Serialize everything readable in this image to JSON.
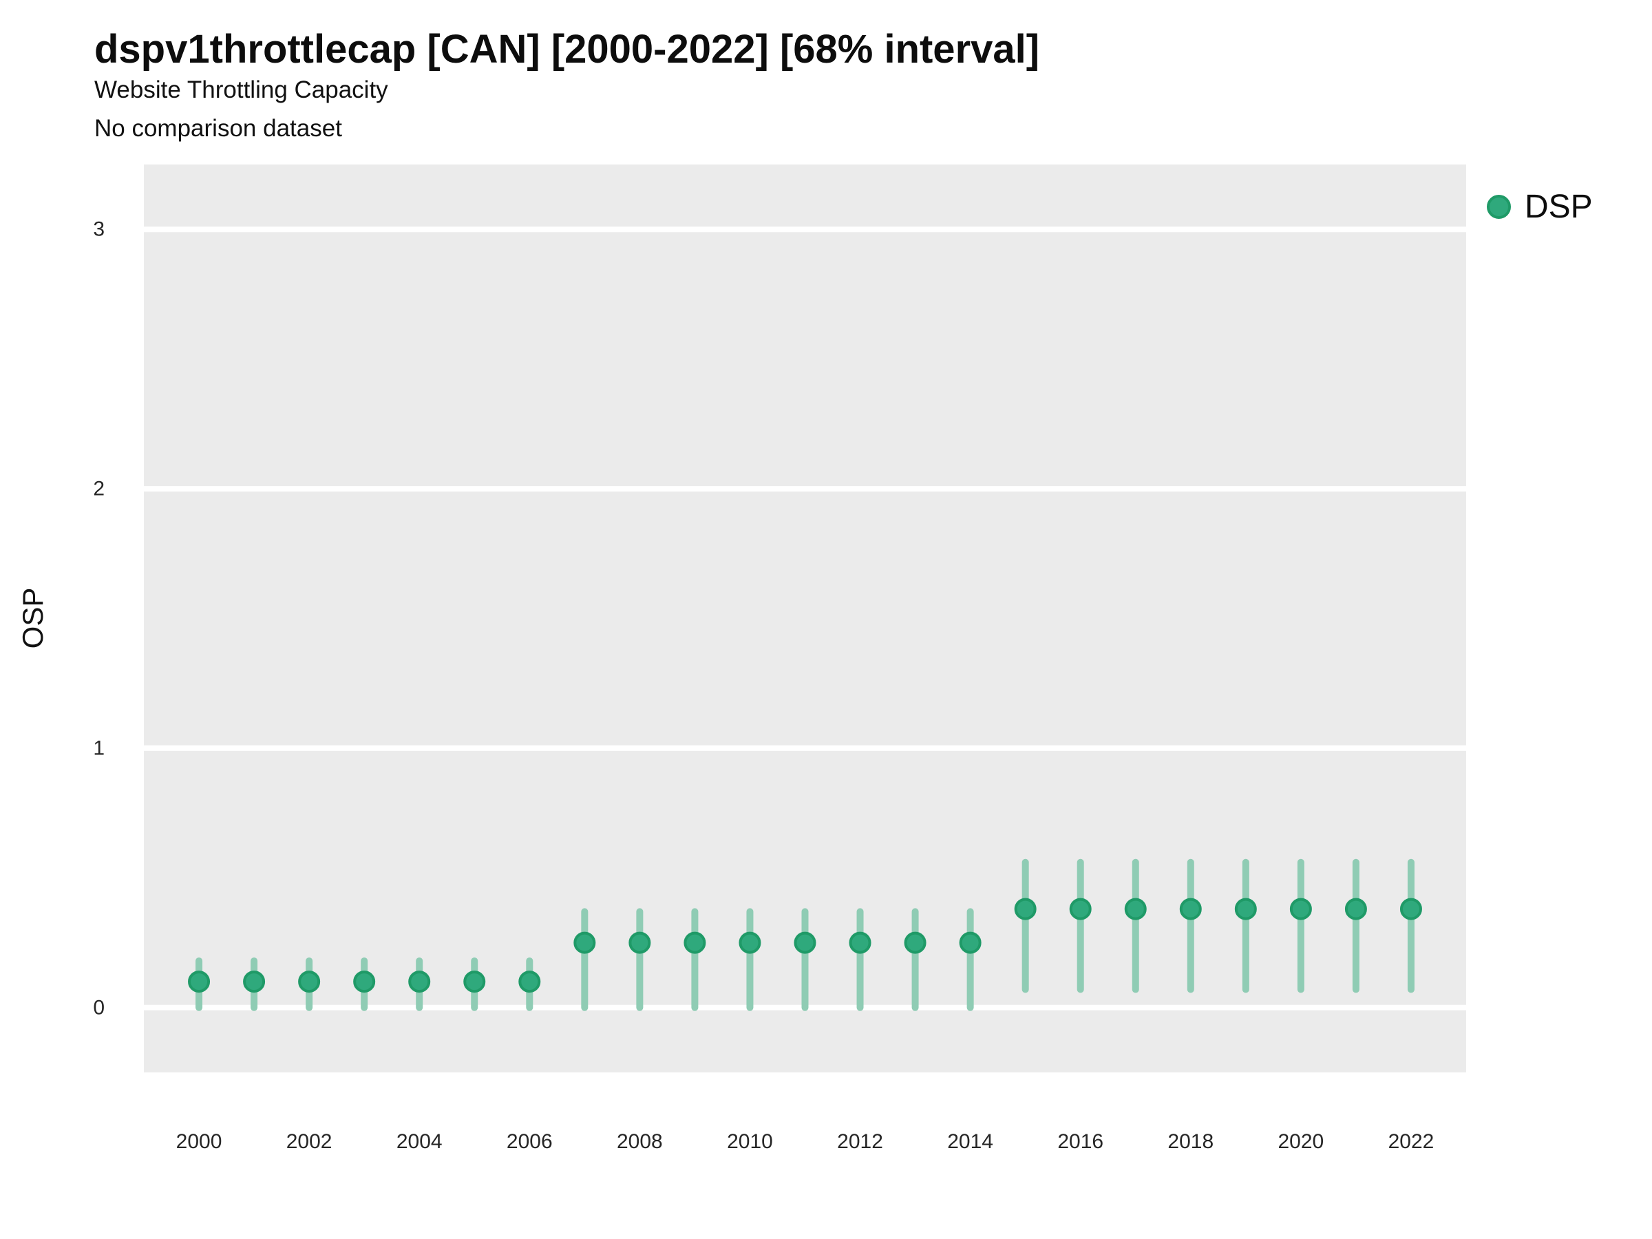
{
  "chart_data": {
    "type": "scatter",
    "variant": "pointrange",
    "title": "dspv1throttlecap [CAN] [2000-2022] [68% interval]",
    "subtitle": "Website Throttling Capacity",
    "note": "No comparison dataset",
    "xlabel": "",
    "ylabel": "OSP",
    "interval_label": "68% interval",
    "legend": {
      "label": "DSP",
      "position": "right",
      "dot_color": "#2fa97c"
    },
    "x_domain": [
      1999,
      2023
    ],
    "y_domain": [
      -0.25,
      3.25
    ],
    "x_ticks": [
      2000,
      2002,
      2004,
      2006,
      2008,
      2010,
      2012,
      2014,
      2016,
      2018,
      2020,
      2022
    ],
    "y_ticks": [
      0,
      1,
      2,
      3
    ],
    "grid": "major-white-on-gray",
    "panel_color": "#ebebeb",
    "gridline_color": "#ffffff",
    "point_color": "#2fa97c",
    "point_edge_color": "#1f9a67",
    "range_bar_color": "#8fccb4",
    "series": [
      {
        "name": "DSP",
        "points": [
          {
            "year": 2000,
            "value": 0.1,
            "lo": 0.0,
            "hi": 0.18
          },
          {
            "year": 2001,
            "value": 0.1,
            "lo": 0.0,
            "hi": 0.18
          },
          {
            "year": 2002,
            "value": 0.1,
            "lo": 0.0,
            "hi": 0.18
          },
          {
            "year": 2003,
            "value": 0.1,
            "lo": 0.0,
            "hi": 0.18
          },
          {
            "year": 2004,
            "value": 0.1,
            "lo": 0.0,
            "hi": 0.18
          },
          {
            "year": 2005,
            "value": 0.1,
            "lo": 0.0,
            "hi": 0.18
          },
          {
            "year": 2006,
            "value": 0.1,
            "lo": 0.0,
            "hi": 0.18
          },
          {
            "year": 2007,
            "value": 0.25,
            "lo": 0.0,
            "hi": 0.37
          },
          {
            "year": 2008,
            "value": 0.25,
            "lo": 0.0,
            "hi": 0.37
          },
          {
            "year": 2009,
            "value": 0.25,
            "lo": 0.0,
            "hi": 0.37
          },
          {
            "year": 2010,
            "value": 0.25,
            "lo": 0.0,
            "hi": 0.37
          },
          {
            "year": 2011,
            "value": 0.25,
            "lo": 0.0,
            "hi": 0.37
          },
          {
            "year": 2012,
            "value": 0.25,
            "lo": 0.0,
            "hi": 0.37
          },
          {
            "year": 2013,
            "value": 0.25,
            "lo": 0.0,
            "hi": 0.37
          },
          {
            "year": 2014,
            "value": 0.25,
            "lo": 0.0,
            "hi": 0.37
          },
          {
            "year": 2015,
            "value": 0.38,
            "lo": 0.07,
            "hi": 0.56
          },
          {
            "year": 2016,
            "value": 0.38,
            "lo": 0.07,
            "hi": 0.56
          },
          {
            "year": 2017,
            "value": 0.38,
            "lo": 0.07,
            "hi": 0.56
          },
          {
            "year": 2018,
            "value": 0.38,
            "lo": 0.07,
            "hi": 0.56
          },
          {
            "year": 2019,
            "value": 0.38,
            "lo": 0.07,
            "hi": 0.56
          },
          {
            "year": 2020,
            "value": 0.38,
            "lo": 0.07,
            "hi": 0.56
          },
          {
            "year": 2021,
            "value": 0.38,
            "lo": 0.07,
            "hi": 0.56
          },
          {
            "year": 2022,
            "value": 0.38,
            "lo": 0.07,
            "hi": 0.56
          }
        ]
      }
    ]
  }
}
